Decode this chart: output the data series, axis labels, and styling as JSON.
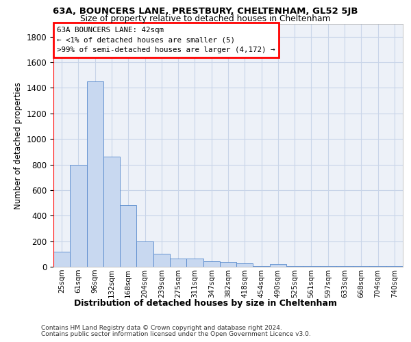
{
  "title1": "63A, BOUNCERS LANE, PRESTBURY, CHELTENHAM, GL52 5JB",
  "title2": "Size of property relative to detached houses in Cheltenham",
  "xlabel": "Distribution of detached houses by size in Cheltenham",
  "ylabel": "Number of detached properties",
  "categories": [
    "25sqm",
    "61sqm",
    "96sqm",
    "132sqm",
    "168sqm",
    "204sqm",
    "239sqm",
    "275sqm",
    "311sqm",
    "347sqm",
    "382sqm",
    "418sqm",
    "454sqm",
    "490sqm",
    "525sqm",
    "561sqm",
    "597sqm",
    "633sqm",
    "668sqm",
    "704sqm",
    "740sqm"
  ],
  "values": [
    120,
    800,
    1450,
    860,
    480,
    200,
    100,
    65,
    65,
    45,
    35,
    25,
    5,
    20,
    5,
    5,
    5,
    5,
    5,
    5,
    5
  ],
  "bar_color": "#c8d8f0",
  "bar_edge_color": "#5588cc",
  "grid_color": "#c8d4e8",
  "background_color": "#edf1f8",
  "annotation_lines": [
    "63A BOUNCERS LANE: 42sqm",
    "← <1% of detached houses are smaller (5)",
    ">99% of semi-detached houses are larger (4,172) →"
  ],
  "ylim": [
    0,
    1900
  ],
  "yticks": [
    0,
    200,
    400,
    600,
    800,
    1000,
    1200,
    1400,
    1600,
    1800
  ],
  "footnote1": "Contains HM Land Registry data © Crown copyright and database right 2024.",
  "footnote2": "Contains public sector information licensed under the Open Government Licence v3.0."
}
